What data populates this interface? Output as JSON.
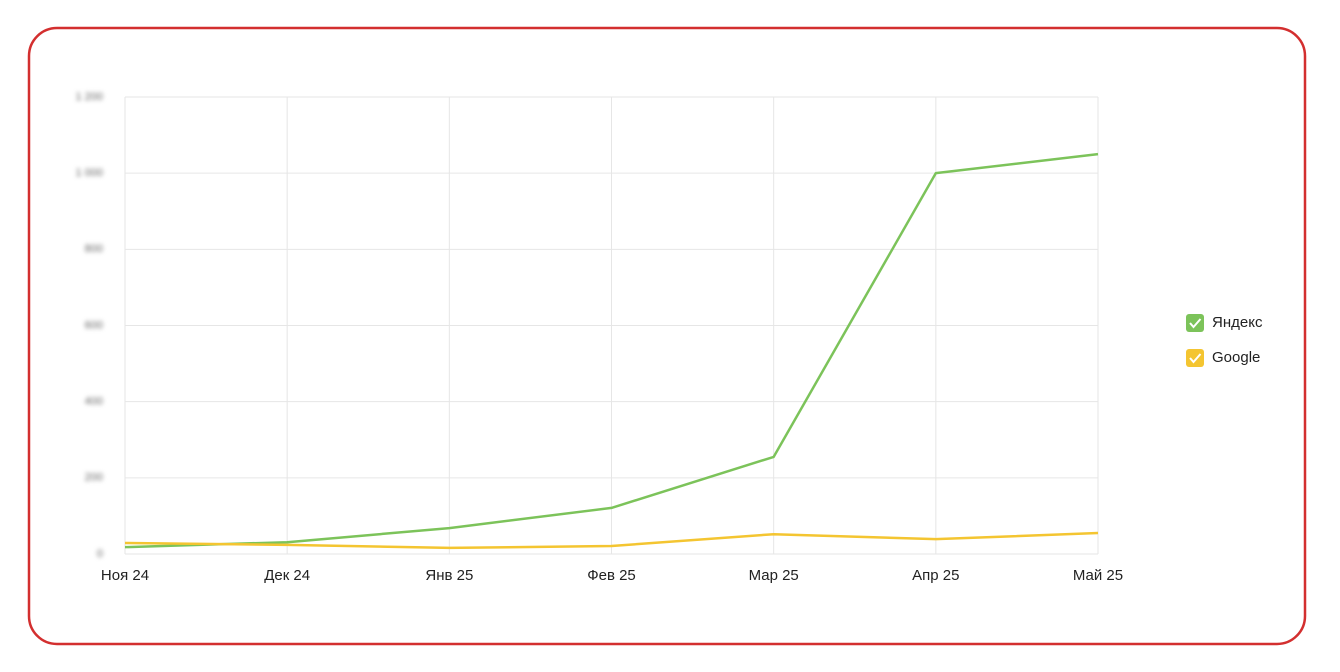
{
  "chart_data": {
    "type": "line",
    "categories": [
      "Ноя 24",
      "Дек 24",
      "Янв 25",
      "Фев 25",
      "Мар 25",
      "Апр 25",
      "Май 25"
    ],
    "series": [
      {
        "name": "Яндекс",
        "color": "#7cc35a",
        "values": [
          18,
          31,
          68,
          121,
          255,
          1000,
          1050
        ]
      },
      {
        "name": "Google",
        "color": "#f4c531",
        "values": [
          29,
          24,
          16,
          21,
          52,
          39,
          55
        ]
      }
    ],
    "ylim": [
      0,
      1200
    ],
    "yticks": [
      0,
      200,
      400,
      600,
      800,
      {
        "value": 1000,
        "label": "1 000"
      },
      {
        "value": 1200,
        "label": "1 200"
      }
    ],
    "grid": true,
    "legend": "right"
  }
}
